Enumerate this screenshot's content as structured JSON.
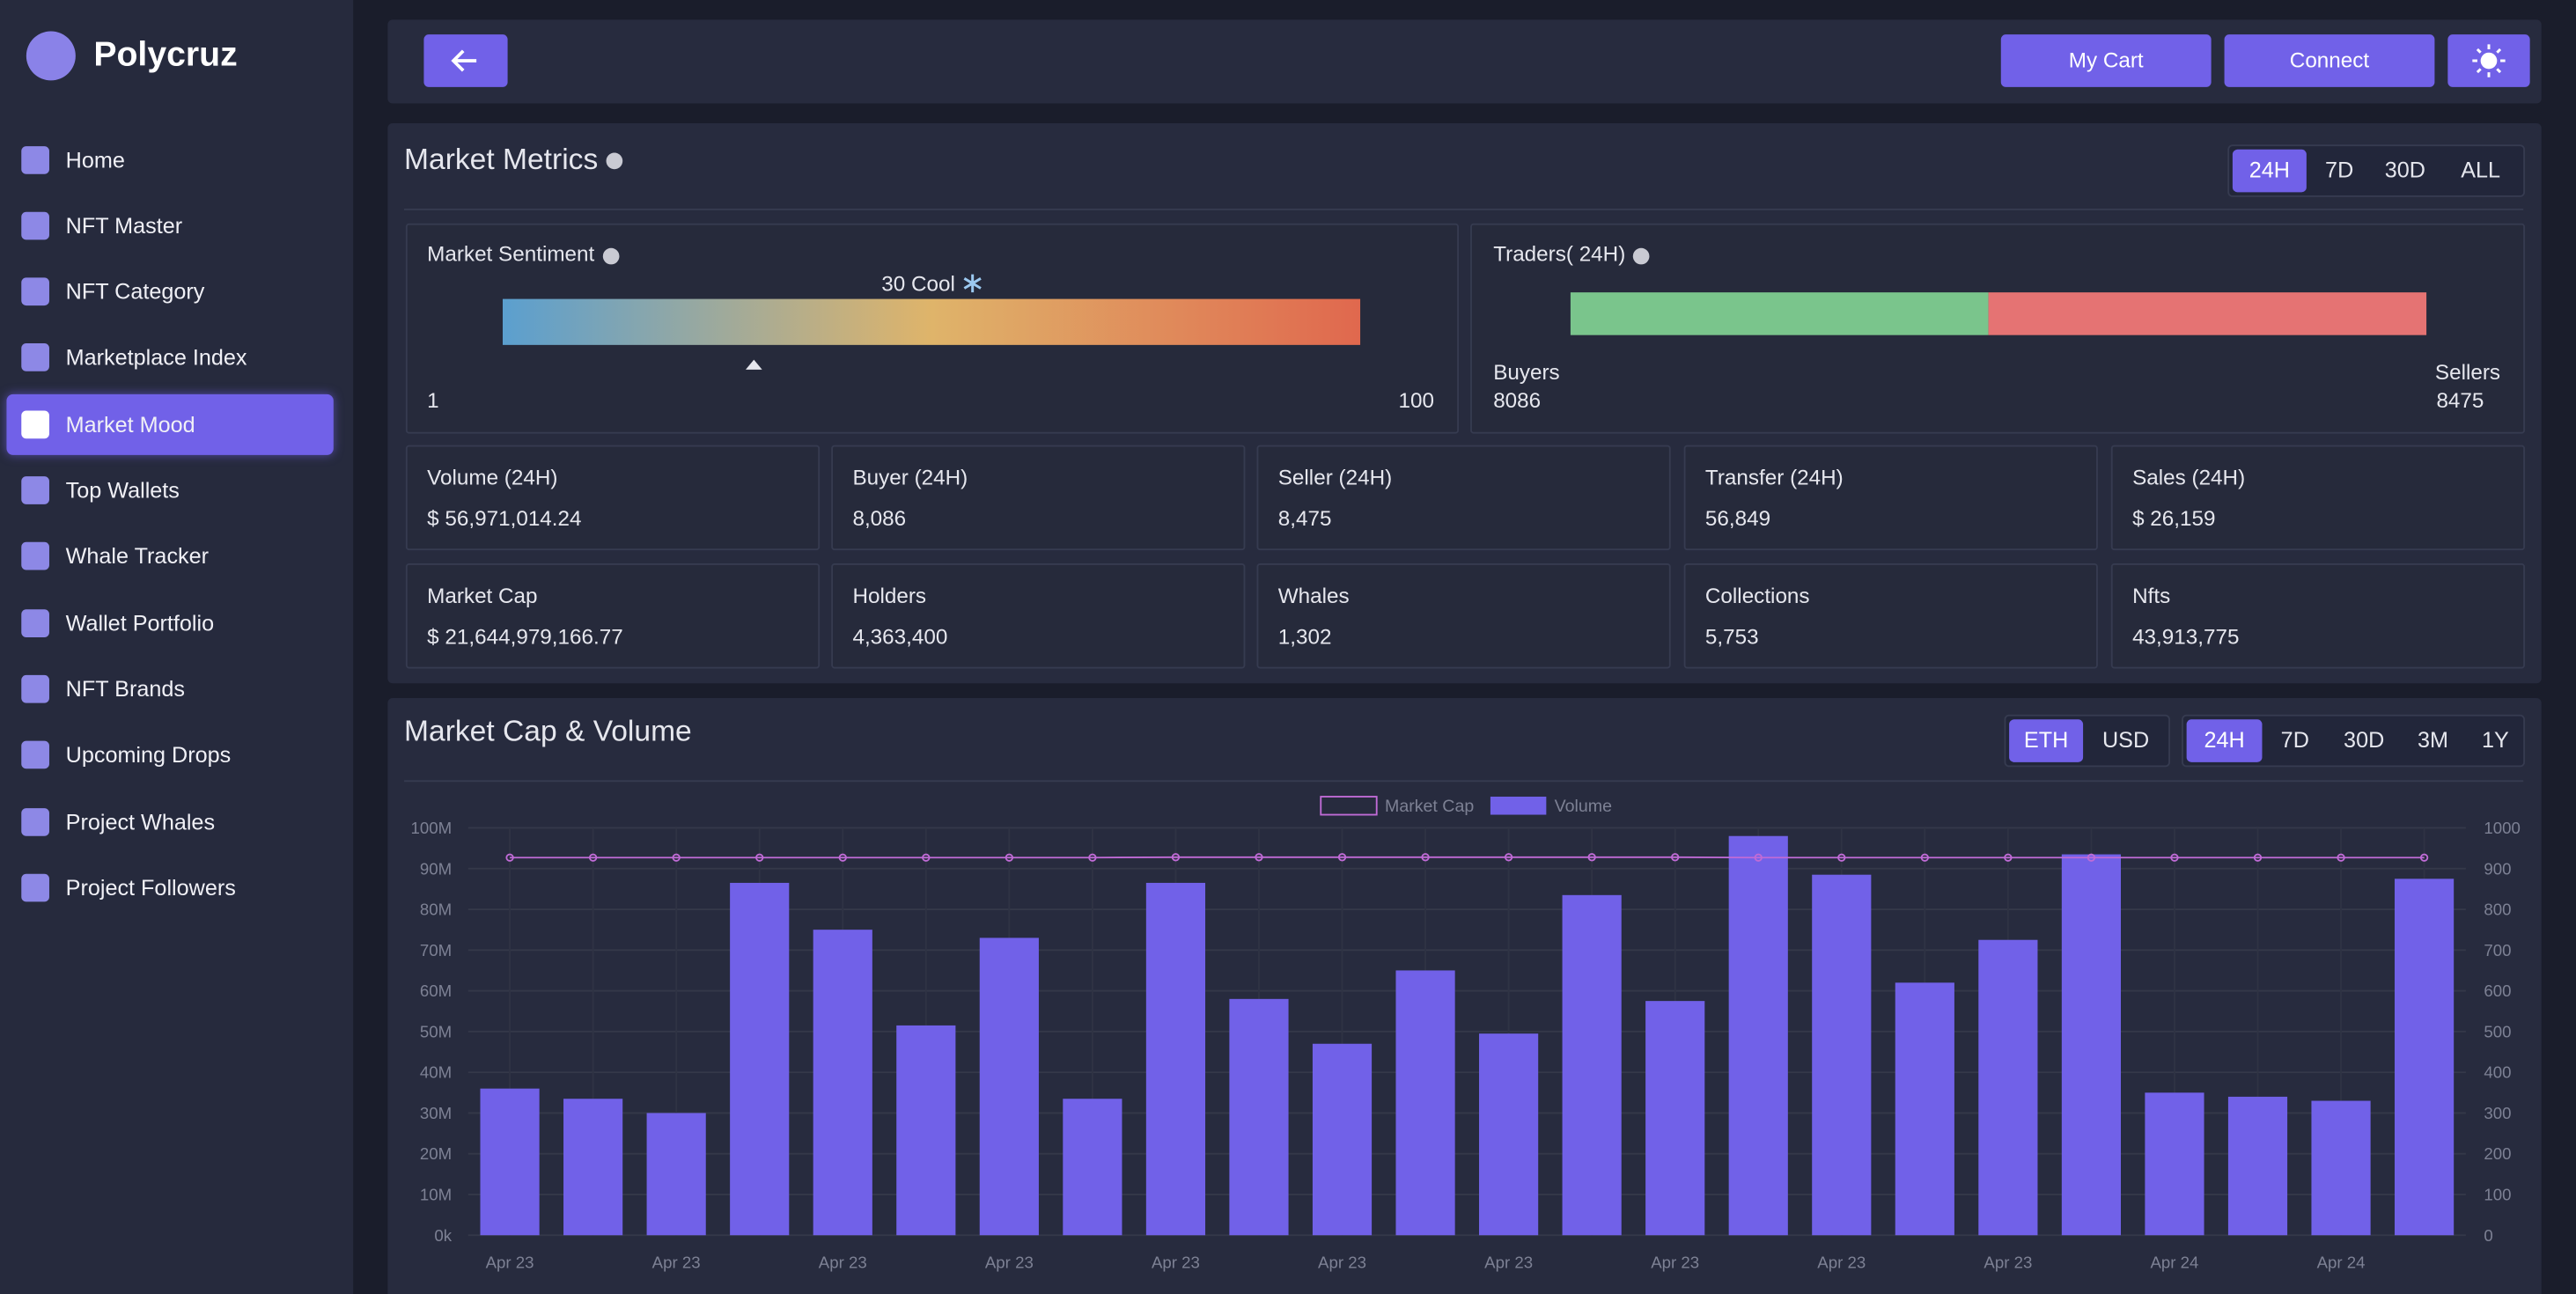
{
  "sidebar": {
    "brand": "Polycruz",
    "menu": [
      "Home",
      "NFT Master",
      "NFT Category",
      "Marketplace Index",
      "Market Mood",
      "Top Wallets",
      "Whale Tracker",
      "Wallet Portfolio",
      "NFT Brands",
      "Upcoming Drops",
      "Project Whales",
      "Project Followers"
    ]
  },
  "header": {
    "buttons": [
      "My Cart",
      "Connect"
    ]
  },
  "market_metrics": {
    "title": "Market Metrics",
    "periods": [
      "24H",
      "7D",
      "30D",
      "ALL"
    ],
    "sentiment": {
      "label": "Market Sentiment",
      "reading": "30 Cool",
      "value": 30,
      "min": 1,
      "max": 100
    },
    "traders": {
      "label": "Traders( 24H)",
      "buyers_label": "Buyers",
      "buyers": 8086,
      "sellers_label": "Sellers",
      "sellers": 8475
    },
    "stats": [
      {
        "label": "Volume (24H)",
        "value": "$ 56,971,014.24"
      },
      {
        "label": "Buyer (24H)",
        "value": "8,086"
      },
      {
        "label": "Seller (24H)",
        "value": "8,475"
      },
      {
        "label": "Transfer (24H)",
        "value": "56,849"
      },
      {
        "label": "Sales (24H)",
        "value": "$ 26,159"
      },
      {
        "label": "Market Cap",
        "value": "$ 21,644,979,166.77"
      },
      {
        "label": "Holders",
        "value": "4,363,400"
      },
      {
        "label": "Whales",
        "value": "1,302"
      },
      {
        "label": "Collections",
        "value": "5,753"
      },
      {
        "label": "Nfts",
        "value": "43,913,775"
      }
    ]
  },
  "chart_section": {
    "title": "Market Cap & Volume",
    "currencies": [
      "ETH",
      "USD"
    ],
    "periods": [
      "24H",
      "7D",
      "30D",
      "3M",
      "1Y"
    ]
  },
  "chart_data": {
    "type": "bar",
    "categories": [
      "Apr 23",
      null,
      "Apr 23",
      null,
      "Apr 23",
      null,
      "Apr 23",
      null,
      "Apr 23",
      null,
      "Apr 23",
      null,
      "Apr 23",
      null,
      "Apr 23",
      null,
      "Apr 23",
      null,
      "Apr 23",
      null,
      "Apr 24",
      null,
      "Apr 24",
      null
    ],
    "series": [
      {
        "name": "Market Cap",
        "type": "line",
        "axis": "y2",
        "color": "#c06bd6",
        "values": [
          927,
          927,
          927,
          927,
          927,
          927,
          927,
          927,
          928,
          928,
          928,
          928,
          928,
          928,
          928,
          927,
          927,
          927,
          927,
          927,
          927,
          927,
          927,
          927
        ]
      },
      {
        "name": "Volume",
        "type": "bar",
        "color": "#7161e8",
        "values": [
          36000000,
          33500000,
          30000000,
          86500000,
          75000000,
          51500000,
          73000000,
          33500000,
          86500000,
          58000000,
          47000000,
          65000000,
          49500000,
          83500000,
          57500000,
          98000000,
          88500000,
          62000000,
          72500000,
          93500000,
          35000000,
          34000000,
          33000000,
          87500000
        ]
      }
    ],
    "ylim": [
      0,
      100000000
    ],
    "yticks": [
      {
        "value": 0,
        "label": "0k"
      },
      {
        "value": 10000000,
        "label": "10M"
      },
      {
        "value": 20000000,
        "label": "20M"
      },
      {
        "value": 30000000,
        "label": "30M"
      },
      {
        "value": 40000000,
        "label": "40M"
      },
      {
        "value": 50000000,
        "label": "50M"
      },
      {
        "value": 60000000,
        "label": "60M"
      },
      {
        "value": 70000000,
        "label": "70M"
      },
      {
        "value": 80000000,
        "label": "80M"
      },
      {
        "value": 90000000,
        "label": "90M"
      },
      {
        "value": 100000000,
        "label": "100M"
      }
    ],
    "y2lim": [
      0,
      1000
    ],
    "y2ticks": [
      0,
      100,
      200,
      300,
      400,
      500,
      600,
      700,
      800,
      900,
      1000
    ],
    "grid": true,
    "legend": "top"
  }
}
